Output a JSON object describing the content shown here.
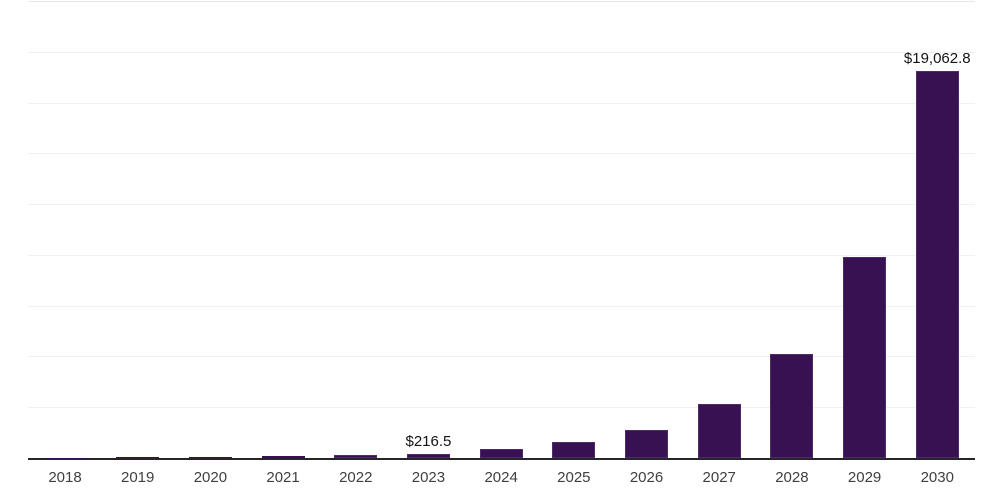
{
  "chart_data": {
    "type": "bar",
    "title": "",
    "xlabel": "",
    "ylabel": "",
    "categories": [
      "2018",
      "2019",
      "2020",
      "2021",
      "2022",
      "2023",
      "2024",
      "2025",
      "2026",
      "2027",
      "2028",
      "2029",
      "2030"
    ],
    "values": [
      20,
      30,
      55,
      100,
      150,
      216.5,
      455,
      800,
      1390,
      2650,
      5100,
      9900,
      19062.8
    ],
    "bar_labels": [
      "",
      "",
      "",
      "",
      "",
      "$216.5",
      "",
      "",
      "",
      "",
      "",
      "",
      "$19,062.8"
    ],
    "ylim": [
      0,
      22500
    ],
    "gridline_interval": 2500,
    "grid": "horizontal",
    "legend_position": "none",
    "colors": {
      "bar_fill": "#371151",
      "bar_border": "#4e2a68",
      "axis_line": "#262626",
      "gridline": "#f0f0f0",
      "top_gridline": "#e8e8e8",
      "tick_label": "#3f3f3f",
      "value_label": "#141414",
      "background": "#ffffff"
    }
  }
}
